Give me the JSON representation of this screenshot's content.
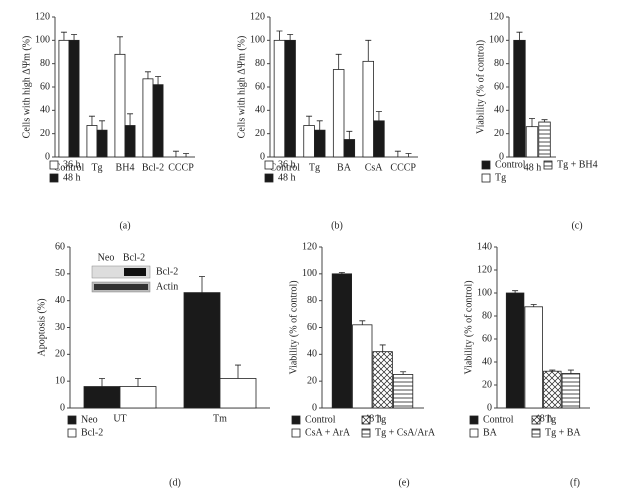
{
  "chart_data": [
    {
      "type": "bar",
      "panel_label": "(a)",
      "ylabel": "Cells with high ΔΨm (%)",
      "categories": [
        "Control",
        "Tg",
        "BH4",
        "Bcl-2",
        "CCCP"
      ],
      "ylim": [
        0,
        120
      ],
      "yticks": [
        0,
        20,
        40,
        60,
        80,
        100,
        120
      ],
      "series": [
        {
          "name": "36 h",
          "color": "#ffffff",
          "pattern": "solid",
          "values": [
            100,
            27,
            88,
            67,
            0
          ],
          "errors": [
            7,
            8,
            15,
            6,
            5
          ]
        },
        {
          "name": "48 h",
          "color": "#1a1a1a",
          "pattern": "solid",
          "values": [
            100,
            23,
            27,
            62,
            0
          ],
          "errors": [
            5,
            8,
            10,
            7,
            3
          ]
        }
      ]
    },
    {
      "type": "bar",
      "panel_label": "(b)",
      "ylabel": "Cells with high ΔΨm (%)",
      "categories": [
        "Control",
        "Tg",
        "BA",
        "CsA",
        "CCCP"
      ],
      "ylim": [
        0,
        120
      ],
      "yticks": [
        0,
        20,
        40,
        60,
        80,
        100,
        120
      ],
      "series": [
        {
          "name": "36 h",
          "color": "#ffffff",
          "pattern": "solid",
          "values": [
            100,
            27,
            75,
            82,
            0
          ],
          "errors": [
            8,
            8,
            13,
            18,
            5
          ]
        },
        {
          "name": "48 h",
          "color": "#1a1a1a",
          "pattern": "solid",
          "values": [
            100,
            23,
            15,
            31,
            0
          ],
          "errors": [
            5,
            8,
            7,
            8,
            3
          ]
        }
      ]
    },
    {
      "type": "bar",
      "panel_label": "(c)",
      "ylabel": "Viability (% of control)",
      "categories": [
        "48 h"
      ],
      "ylim": [
        0,
        120
      ],
      "yticks": [
        0,
        20,
        40,
        60,
        80,
        100,
        120
      ],
      "series": [
        {
          "name": "Control",
          "color": "#1a1a1a",
          "pattern": "solid",
          "values": [
            100
          ],
          "errors": [
            7
          ]
        },
        {
          "name": "Tg",
          "color": "#ffffff",
          "pattern": "solid",
          "values": [
            26
          ],
          "errors": [
            7
          ]
        },
        {
          "name": "Tg + BH4",
          "color": "#ffffff",
          "pattern": "horizontal",
          "values": [
            30
          ],
          "errors": [
            2
          ]
        }
      ]
    },
    {
      "type": "bar",
      "panel_label": "(d)",
      "ylabel": "Apoptosis (%)",
      "categories": [
        "UT",
        "Tm"
      ],
      "ylim": [
        0,
        60
      ],
      "yticks": [
        0,
        10,
        20,
        30,
        40,
        50,
        60
      ],
      "inset": {
        "lanes": [
          "Neo",
          "Bcl-2"
        ],
        "bands": [
          "Bcl-2",
          "Actin"
        ]
      },
      "series": [
        {
          "name": "Neo",
          "color": "#1a1a1a",
          "pattern": "solid",
          "values": [
            8,
            43
          ],
          "errors": [
            3,
            6
          ]
        },
        {
          "name": "Bcl-2",
          "color": "#ffffff",
          "pattern": "solid",
          "values": [
            8,
            11
          ],
          "errors": [
            3,
            5
          ]
        }
      ]
    },
    {
      "type": "bar",
      "panel_label": "(e)",
      "ylabel": "Viability (% of control)",
      "categories": [
        "48 h"
      ],
      "ylim": [
        0,
        120
      ],
      "yticks": [
        0,
        20,
        40,
        60,
        80,
        100,
        120
      ],
      "series": [
        {
          "name": "Control",
          "color": "#1a1a1a",
          "pattern": "solid",
          "values": [
            100
          ],
          "errors": [
            1
          ]
        },
        {
          "name": "CsA + ArA",
          "color": "#ffffff",
          "pattern": "solid",
          "values": [
            62
          ],
          "errors": [
            3
          ]
        },
        {
          "name": "Tg",
          "color": "#ffffff",
          "pattern": "crosshatch",
          "values": [
            42
          ],
          "errors": [
            5
          ]
        },
        {
          "name": "Tg + CsA/ArA",
          "color": "#ffffff",
          "pattern": "horizontal",
          "values": [
            25
          ],
          "errors": [
            2
          ]
        }
      ]
    },
    {
      "type": "bar",
      "panel_label": "(f)",
      "ylabel": "Viability (% of control)",
      "categories": [
        "48 h"
      ],
      "ylim": [
        0,
        140
      ],
      "yticks": [
        0,
        20,
        40,
        60,
        80,
        100,
        120,
        140
      ],
      "series": [
        {
          "name": "Control",
          "color": "#1a1a1a",
          "pattern": "solid",
          "values": [
            100
          ],
          "errors": [
            2
          ]
        },
        {
          "name": "BA",
          "color": "#ffffff",
          "pattern": "solid",
          "values": [
            88
          ],
          "errors": [
            2
          ]
        },
        {
          "name": "Tg",
          "color": "#ffffff",
          "pattern": "crosshatch",
          "values": [
            32
          ],
          "errors": [
            1
          ]
        },
        {
          "name": "Tg + BA",
          "color": "#ffffff",
          "pattern": "horizontal",
          "values": [
            30
          ],
          "errors": [
            3
          ]
        }
      ]
    }
  ]
}
